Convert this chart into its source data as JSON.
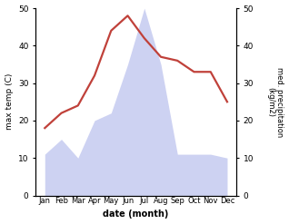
{
  "months": [
    "Jan",
    "Feb",
    "Mar",
    "Apr",
    "May",
    "Jun",
    "Jul",
    "Aug",
    "Sep",
    "Oct",
    "Nov",
    "Dec"
  ],
  "temp": [
    18,
    22,
    24,
    32,
    44,
    48,
    42,
    37,
    36,
    33,
    33,
    25
  ],
  "precip": [
    11,
    15,
    10,
    20,
    22,
    35,
    50,
    35,
    11,
    11,
    11,
    10
  ],
  "temp_color": "#c0413a",
  "precip_fill_color": "#c5caf0",
  "ylabel_left": "max temp (C)",
  "ylabel_right": "med. precipitation\n(kg/m2)",
  "xlabel": "date (month)",
  "ylim_left": [
    0,
    50
  ],
  "ylim_right": [
    0,
    50
  ],
  "yticks_left": [
    0,
    10,
    20,
    30,
    40,
    50
  ],
  "yticks_right": [
    0,
    10,
    20,
    30,
    40,
    50
  ],
  "bg_color": "#ffffff",
  "line_width": 1.6
}
